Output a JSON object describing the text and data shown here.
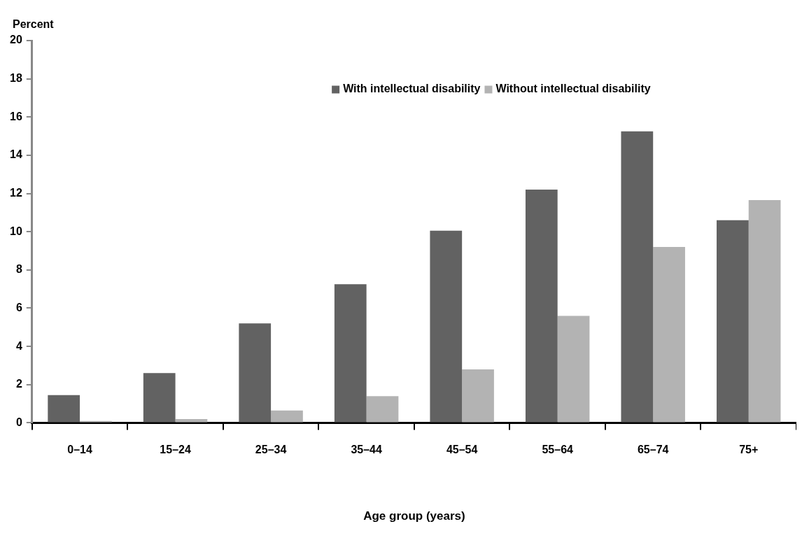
{
  "chart_data": {
    "type": "bar",
    "ylabel": "Percent",
    "xlabel": "Age group (years)",
    "categories": [
      "0–14",
      "15–24",
      "25–34",
      "35–44",
      "45–54",
      "55–64",
      "65–74",
      "75+"
    ],
    "series": [
      {
        "name": "With intellectual disability",
        "color": "#626262",
        "values": [
          1.45,
          2.6,
          5.2,
          7.25,
          10.05,
          12.2,
          15.25,
          10.6
        ]
      },
      {
        "name": "Without intellectual disability",
        "color": "#b3b3b3",
        "values": [
          0.1,
          0.2,
          0.65,
          1.4,
          2.8,
          5.6,
          9.2,
          11.65
        ]
      }
    ],
    "ylim": [
      0,
      20
    ],
    "yticks": [
      0,
      2,
      4,
      6,
      8,
      10,
      12,
      14,
      16,
      18,
      20
    ],
    "grid": false,
    "legend": "top"
  }
}
